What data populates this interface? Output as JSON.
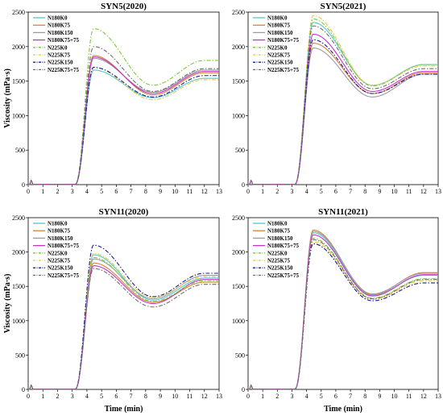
{
  "figure": {
    "xlabel": "Time (min)",
    "ylabel": "Viscosity (mPa·s)"
  },
  "colors": {
    "N180K0": "#55c8c8",
    "N180K75": "#d4843c",
    "N180K150": "#9a9aa8",
    "N180K75+75": "#c832c8",
    "N225K0": "#7ec83c",
    "N225K75": "#e6c84a",
    "N225K150": "#1c1c8c",
    "N225K75+75": "#6e6e6e"
  },
  "series_style": {
    "N180K0": "solid",
    "N180K75": "solid",
    "N180K150": "solid",
    "N180K75+75": "solid",
    "N225K0": "dashdot",
    "N225K75": "dashdot",
    "N225K150": "dashdot",
    "N225K75+75": "dashdot"
  },
  "chart_data": [
    {
      "type": "line",
      "title": "SYN5(2020)",
      "xlabel": "",
      "ylabel": "Viscosity (mPa·s)",
      "xlim": [
        0,
        13
      ],
      "ylim": [
        0,
        2500
      ],
      "xticks": [
        0,
        1,
        2,
        3,
        4,
        5,
        6,
        7,
        8,
        9,
        10,
        11,
        12,
        13
      ],
      "yticks": [
        0,
        500,
        1000,
        1500,
        2000,
        2500
      ],
      "grid": false,
      "legend": "top-left",
      "series": [
        {
          "name": "N180K0",
          "peak": 1660,
          "trough": 1260,
          "end": 1540
        },
        {
          "name": "N180K75",
          "peak": 1870,
          "trough": 1300,
          "end": 1620
        },
        {
          "name": "N180K150",
          "peak": 1830,
          "trough": 1340,
          "end": 1660
        },
        {
          "name": "N180K75+75",
          "peak": 1850,
          "trough": 1320,
          "end": 1640
        },
        {
          "name": "N225K0",
          "peak": 2260,
          "trough": 1440,
          "end": 1800
        },
        {
          "name": "N225K75",
          "peak": 1700,
          "trough": 1230,
          "end": 1520
        },
        {
          "name": "N225K150",
          "peak": 1700,
          "trough": 1270,
          "end": 1580
        },
        {
          "name": "N225K75+75",
          "peak": 2000,
          "trough": 1350,
          "end": 1680
        }
      ]
    },
    {
      "type": "line",
      "title": "SYN5(2021)",
      "xlabel": "",
      "ylabel": "",
      "xlim": [
        0,
        13
      ],
      "ylim": [
        0,
        2500
      ],
      "xticks": [
        0,
        1,
        2,
        3,
        4,
        5,
        6,
        7,
        8,
        9,
        10,
        11,
        12,
        13
      ],
      "yticks": [
        0,
        500,
        1000,
        1500,
        2000,
        2500
      ],
      "grid": false,
      "legend": "top-left",
      "series": [
        {
          "name": "N180K0",
          "peak": 2350,
          "trough": 1440,
          "end": 1740
        },
        {
          "name": "N180K75",
          "peak": 2050,
          "trough": 1320,
          "end": 1620
        },
        {
          "name": "N180K150",
          "peak": 1980,
          "trough": 1270,
          "end": 1600
        },
        {
          "name": "N180K75+75",
          "peak": 2180,
          "trough": 1350,
          "end": 1640
        },
        {
          "name": "N225K0",
          "peak": 2400,
          "trough": 1430,
          "end": 1740
        },
        {
          "name": "N225K75",
          "peak": 2450,
          "trough": 1440,
          "end": 1720
        },
        {
          "name": "N225K150",
          "peak": 2100,
          "trough": 1320,
          "end": 1600
        },
        {
          "name": "N225K75+75",
          "peak": 2300,
          "trough": 1390,
          "end": 1680
        }
      ]
    },
    {
      "type": "line",
      "title": "SYN11(2020)",
      "xlabel": "Time (min)",
      "ylabel": "Viscosity (mPa·s)",
      "xlim": [
        0,
        13
      ],
      "ylim": [
        0,
        2500
      ],
      "xticks": [
        0,
        1,
        2,
        3,
        4,
        5,
        6,
        7,
        8,
        9,
        10,
        11,
        12,
        13
      ],
      "yticks": [
        0,
        500,
        1000,
        1500,
        2000,
        2500
      ],
      "grid": false,
      "legend": "top-left",
      "series": [
        {
          "name": "N180K0",
          "peak": 1960,
          "trough": 1300,
          "end": 1620
        },
        {
          "name": "N180K75",
          "peak": 1840,
          "trough": 1270,
          "end": 1560
        },
        {
          "name": "N180K150",
          "peak": 1900,
          "trough": 1320,
          "end": 1660
        },
        {
          "name": "N180K75+75",
          "peak": 1800,
          "trough": 1250,
          "end": 1600
        },
        {
          "name": "N225K0",
          "peak": 1920,
          "trough": 1280,
          "end": 1580
        },
        {
          "name": "N225K75",
          "peak": 1980,
          "trough": 1340,
          "end": 1640
        },
        {
          "name": "N225K150",
          "peak": 2100,
          "trough": 1350,
          "end": 1690
        },
        {
          "name": "N225K75+75",
          "peak": 1760,
          "trough": 1200,
          "end": 1530
        }
      ]
    },
    {
      "type": "line",
      "title": "SYN11(2021)",
      "xlabel": "Time (min)",
      "ylabel": "",
      "xlim": [
        0,
        13
      ],
      "ylim": [
        0,
        2500
      ],
      "xticks": [
        0,
        1,
        2,
        3,
        4,
        5,
        6,
        7,
        8,
        9,
        10,
        11,
        12,
        13
      ],
      "yticks": [
        0,
        500,
        1000,
        1500,
        2000,
        2500
      ],
      "grid": false,
      "legend": "top-left",
      "series": [
        {
          "name": "N180K0",
          "peak": 2280,
          "trough": 1370,
          "end": 1660
        },
        {
          "name": "N180K75",
          "peak": 2320,
          "trough": 1380,
          "end": 1700
        },
        {
          "name": "N180K150",
          "peak": 2300,
          "trough": 1390,
          "end": 1690
        },
        {
          "name": "N180K75+75",
          "peak": 2250,
          "trough": 1360,
          "end": 1670
        },
        {
          "name": "N225K0",
          "peak": 2200,
          "trough": 1330,
          "end": 1610
        },
        {
          "name": "N225K75",
          "peak": 2150,
          "trough": 1310,
          "end": 1580
        },
        {
          "name": "N225K150",
          "peak": 2120,
          "trough": 1290,
          "end": 1550
        },
        {
          "name": "N225K75+75",
          "peak": 2180,
          "trough": 1320,
          "end": 1600
        }
      ]
    }
  ]
}
